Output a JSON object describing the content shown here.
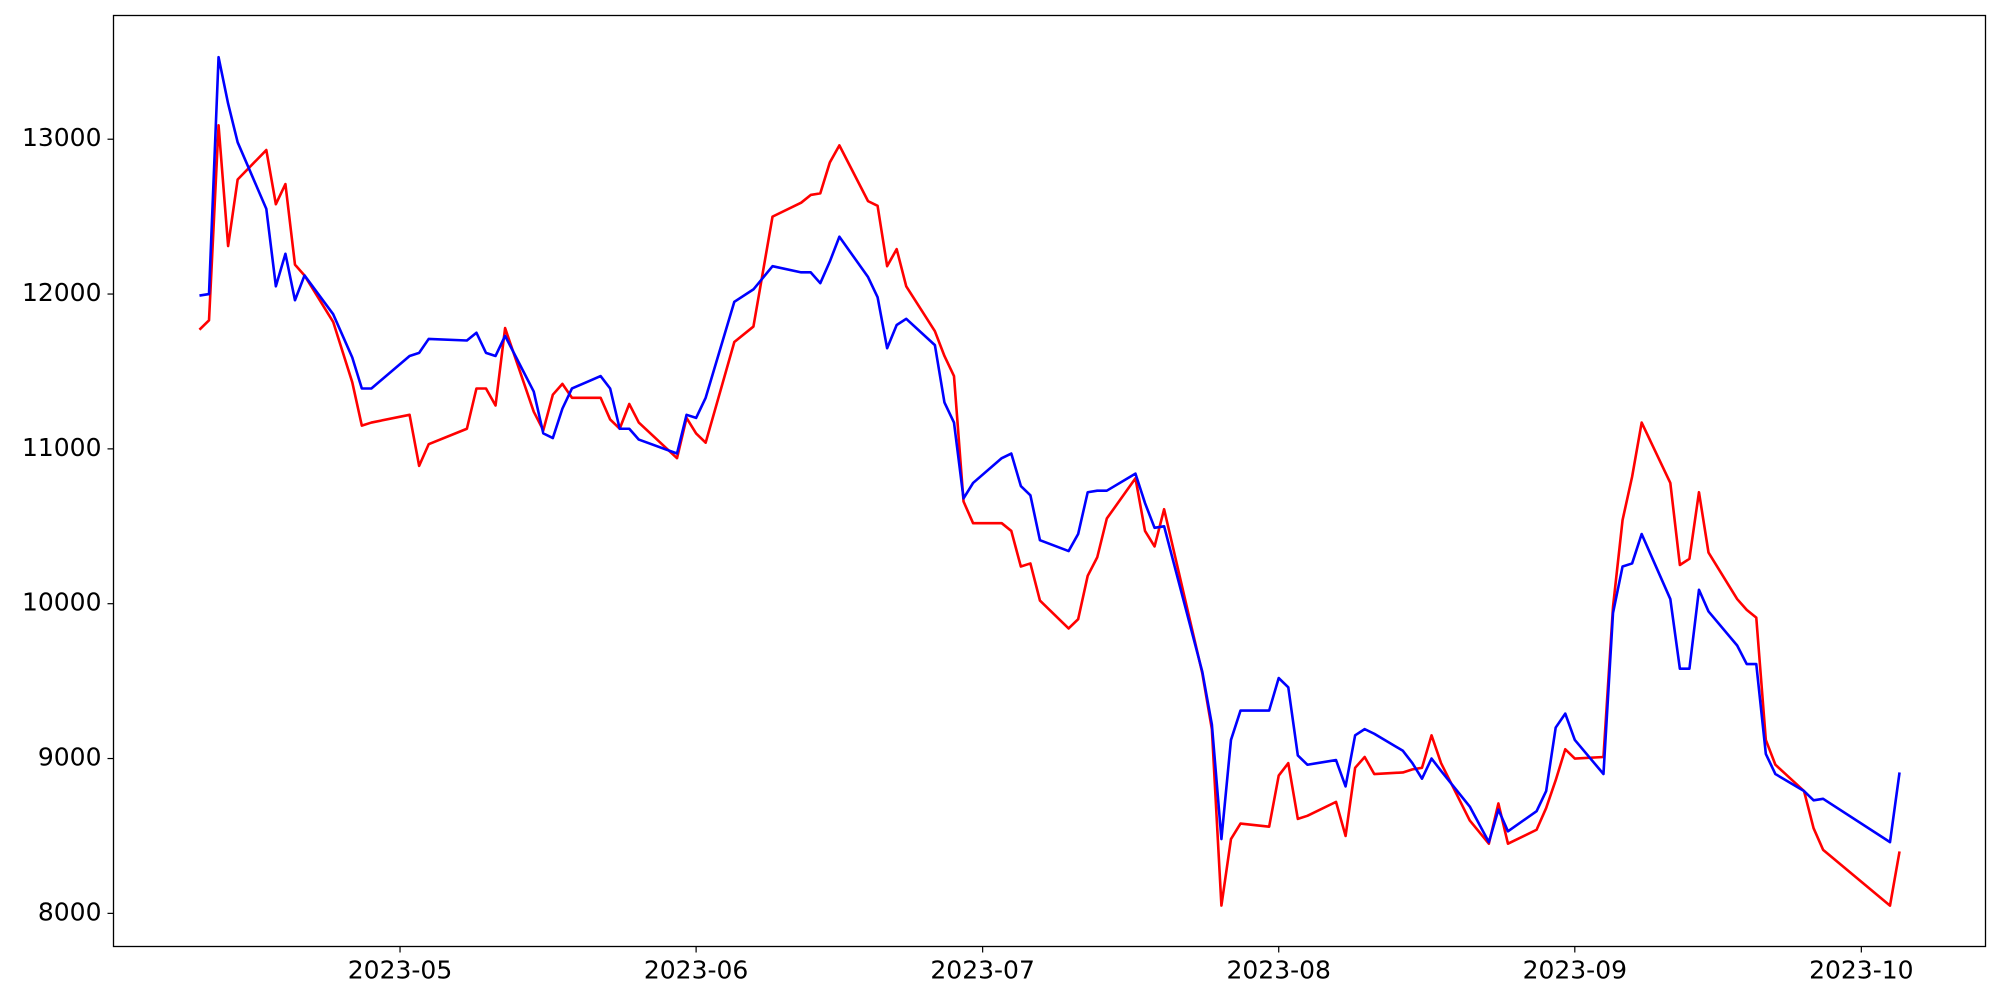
{
  "chart_data": {
    "type": "line",
    "x": [
      "2023-04-10",
      "2023-04-11",
      "2023-04-12",
      "2023-04-13",
      "2023-04-14",
      "2023-04-17",
      "2023-04-18",
      "2023-04-19",
      "2023-04-20",
      "2023-04-21",
      "2023-04-24",
      "2023-04-26",
      "2023-04-27",
      "2023-04-28",
      "2023-05-02",
      "2023-05-03",
      "2023-05-04",
      "2023-05-08",
      "2023-05-09",
      "2023-05-10",
      "2023-05-11",
      "2023-05-12",
      "2023-05-15",
      "2023-05-16",
      "2023-05-17",
      "2023-05-18",
      "2023-05-19",
      "2023-05-22",
      "2023-05-23",
      "2023-05-24",
      "2023-05-25",
      "2023-05-26",
      "2023-05-30",
      "2023-05-31",
      "2023-06-01",
      "2023-06-02",
      "2023-06-05",
      "2023-06-07",
      "2023-06-09",
      "2023-06-12",
      "2023-06-13",
      "2023-06-14",
      "2023-06-15",
      "2023-06-16",
      "2023-06-19",
      "2023-06-20",
      "2023-06-21",
      "2023-06-22",
      "2023-06-23",
      "2023-06-26",
      "2023-06-27",
      "2023-06-28",
      "2023-06-29",
      "2023-06-30",
      "2023-07-03",
      "2023-07-04",
      "2023-07-05",
      "2023-07-06",
      "2023-07-07",
      "2023-07-10",
      "2023-07-11",
      "2023-07-12",
      "2023-07-13",
      "2023-07-14",
      "2023-07-17",
      "2023-07-18",
      "2023-07-19",
      "2023-07-20",
      "2023-07-24",
      "2023-07-25",
      "2023-07-26",
      "2023-07-27",
      "2023-07-28",
      "2023-07-31",
      "2023-08-01",
      "2023-08-02",
      "2023-08-03",
      "2023-08-04",
      "2023-08-07",
      "2023-08-08",
      "2023-08-09",
      "2023-08-10",
      "2023-08-11",
      "2023-08-14",
      "2023-08-15",
      "2023-08-16",
      "2023-08-17",
      "2023-08-18",
      "2023-08-21",
      "2023-08-23",
      "2023-08-24",
      "2023-08-25",
      "2023-08-28",
      "2023-08-29",
      "2023-08-30",
      "2023-08-31",
      "2023-09-01",
      "2023-09-04",
      "2023-09-05",
      "2023-09-06",
      "2023-09-07",
      "2023-09-08",
      "2023-09-11",
      "2023-09-12",
      "2023-09-13",
      "2023-09-14",
      "2023-09-15",
      "2023-09-18",
      "2023-09-19",
      "2023-09-20",
      "2023-09-21",
      "2023-09-22",
      "2023-09-25",
      "2023-09-26",
      "2023-09-27",
      "2023-10-04",
      "2023-10-05"
    ],
    "series": [
      {
        "color": "red",
        "values": [
          11770,
          11830,
          13090,
          12310,
          12740,
          12930,
          12580,
          12710,
          12190,
          12120,
          11820,
          11430,
          11150,
          11170,
          11220,
          10890,
          11030,
          11130,
          11390,
          11390,
          11280,
          11780,
          11240,
          11120,
          11350,
          11420,
          11330,
          11330,
          11190,
          11130,
          11290,
          11170,
          10940,
          11200,
          11100,
          11040,
          11690,
          11790,
          12500,
          12590,
          12640,
          12650,
          12850,
          12960,
          12600,
          12570,
          12180,
          12290,
          12050,
          11760,
          11600,
          11470,
          10660,
          10520,
          10520,
          10470,
          10240,
          10260,
          10020,
          9840,
          9900,
          10180,
          10300,
          10550,
          10810,
          10470,
          10370,
          10610,
          9550,
          9190,
          8050,
          8480,
          8580,
          8560,
          8890,
          8970,
          8610,
          8630,
          8720,
          8500,
          8940,
          9010,
          8900,
          8910,
          8930,
          8940,
          9150,
          8970,
          8600,
          8450,
          8710,
          8450,
          8540,
          8680,
          8860,
          9060,
          9000,
          9010,
          9980,
          10540,
          10820,
          11170,
          10780,
          10250,
          10290,
          10720,
          10330,
          10030,
          9960,
          9910,
          9120,
          8960,
          8790,
          8550,
          8410,
          8050,
          8400
        ]
      },
      {
        "color": "blue",
        "values": [
          11990,
          12000,
          13530,
          13230,
          12980,
          12550,
          12050,
          12260,
          11960,
          12120,
          11870,
          11590,
          11390,
          11390,
          11600,
          11620,
          11710,
          11700,
          11750,
          11620,
          11600,
          11730,
          11370,
          11100,
          11070,
          11260,
          11390,
          11470,
          11390,
          11130,
          11130,
          11060,
          10970,
          11220,
          11200,
          11330,
          11950,
          12030,
          12180,
          12140,
          12140,
          12070,
          12210,
          12370,
          12110,
          11980,
          11650,
          11800,
          11840,
          11670,
          11300,
          11170,
          10680,
          10780,
          10940,
          10970,
          10760,
          10700,
          10410,
          10340,
          10450,
          10720,
          10730,
          10730,
          10840,
          10650,
          10490,
          10500,
          9560,
          9220,
          8480,
          9120,
          9310,
          9310,
          9520,
          9460,
          9020,
          8960,
          8990,
          8820,
          9150,
          9190,
          9160,
          9050,
          8970,
          8870,
          9000,
          8920,
          8690,
          8460,
          8670,
          8530,
          8660,
          8790,
          9200,
          9290,
          9120,
          8900,
          9940,
          10240,
          10260,
          10450,
          10030,
          9580,
          9580,
          10090,
          9950,
          9730,
          9610,
          9610,
          9030,
          8900,
          8790,
          8730,
          8740,
          8460,
          8910
        ]
      }
    ],
    "xlim": [
      "2023-04-01",
      "2023-10-14"
    ],
    "xticks": [
      {
        "value": "2023-05-01",
        "label": "2023-05"
      },
      {
        "value": "2023-06-01",
        "label": "2023-06"
      },
      {
        "value": "2023-07-01",
        "label": "2023-07"
      },
      {
        "value": "2023-08-01",
        "label": "2023-08"
      },
      {
        "value": "2023-09-01",
        "label": "2023-09"
      },
      {
        "value": "2023-10-01",
        "label": "2023-10"
      }
    ],
    "ylim": [
      7786,
      13799
    ],
    "yticks": [
      8000,
      9000,
      10000,
      11000,
      12000,
      13000
    ],
    "grid": false
  }
}
